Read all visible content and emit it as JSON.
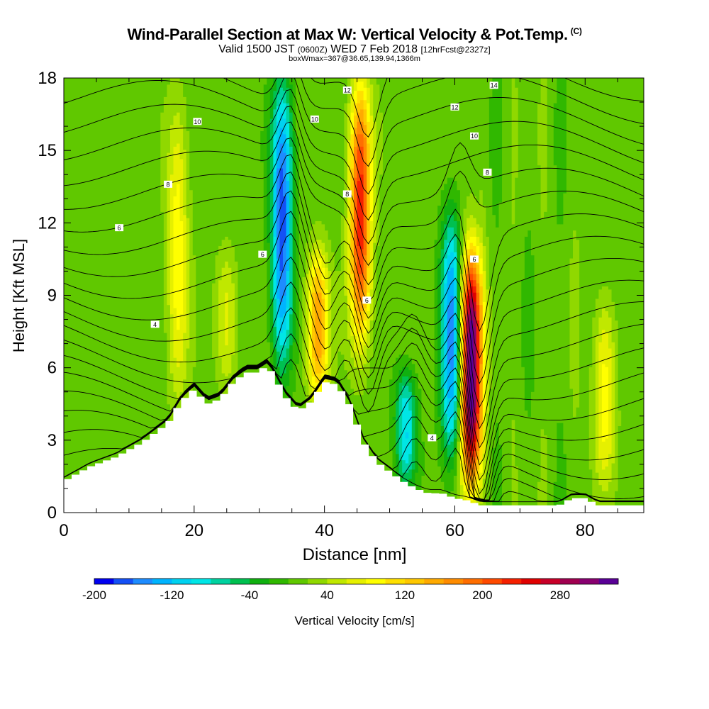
{
  "header": {
    "title": "Wind-Parallel Section at Max W: Vertical Velocity & Pot.Temp.",
    "copyright": "(C)",
    "valid_prefix": "Valid 1500 JST",
    "valid_utc": "(0600Z)",
    "valid_date": "WED 7 Feb 2018",
    "forecast": "[12hrFcst@2327z]",
    "box_info": "boxWmax=367@36.65,139.94,1366m"
  },
  "chart_data": {
    "type": "heatmap",
    "xlabel": "Distance [nm]",
    "ylabel": "Height [Kft MSL]",
    "xlim": [
      0,
      89
    ],
    "ylim": [
      0,
      18
    ],
    "x_ticks": [
      0,
      20,
      40,
      60,
      80
    ],
    "y_ticks": [
      0,
      3,
      6,
      9,
      12,
      15,
      18
    ],
    "colorbar": {
      "label": "Vertical Velocity [cm/s]",
      "min": -200,
      "max": 340,
      "step": 20,
      "tick_labels": [
        -200,
        -120,
        -40,
        40,
        120,
        200,
        280
      ],
      "colors": [
        "#0000f0",
        "#1450f5",
        "#1e8cff",
        "#00b4ff",
        "#00d2f0",
        "#00e6e6",
        "#00d2a0",
        "#00c050",
        "#10b010",
        "#30b800",
        "#60c800",
        "#90d800",
        "#c0e800",
        "#e6f000",
        "#ffff00",
        "#ffe000",
        "#ffc800",
        "#ffaa00",
        "#ff8c00",
        "#ff6e00",
        "#ff4a00",
        "#f52000",
        "#e00000",
        "#c80028",
        "#a00050",
        "#880070",
        "#5a0096"
      ]
    },
    "velocity_cores": [
      {
        "x": 17.5,
        "z_min": 4.5,
        "z_max": 17,
        "peak": 80
      },
      {
        "x": 25,
        "z_min": 5,
        "z_max": 11,
        "peak": 60
      },
      {
        "x": 33.5,
        "z_min": 5.8,
        "z_max": 18,
        "peak": -180
      },
      {
        "x": 39,
        "z_min": 4.5,
        "z_max": 11,
        "peak": 150
      },
      {
        "x": 45.5,
        "z_min": 7,
        "z_max": 18,
        "peak": 220
      },
      {
        "x": 52.5,
        "z_min": 1,
        "z_max": 6,
        "peak": -110
      },
      {
        "x": 59.5,
        "z_min": 2,
        "z_max": 12.5,
        "peak": -160
      },
      {
        "x": 62.5,
        "z_min": 1,
        "z_max": 11,
        "peak": 340
      },
      {
        "x": 83,
        "z_min": 1,
        "z_max": 9,
        "peak": 80
      }
    ],
    "terrain_kft": {
      "x": [
        0,
        2,
        4,
        8,
        12,
        16,
        18,
        20,
        22,
        24,
        26,
        28,
        30,
        31,
        32,
        34,
        36,
        38,
        40,
        42,
        44,
        46,
        48,
        50,
        52,
        54,
        56,
        58,
        60,
        62,
        64,
        66,
        70,
        74,
        76,
        78,
        80,
        82,
        84,
        89
      ],
      "z": [
        1.3,
        1.6,
        1.9,
        2.3,
        2.9,
        3.7,
        4.6,
        5.1,
        4.5,
        4.7,
        5.4,
        5.8,
        5.8,
        6.1,
        5.8,
        4.8,
        4.2,
        4.6,
        5.4,
        5.3,
        4.4,
        2.9,
        2.1,
        1.7,
        1.3,
        1.0,
        0.8,
        0.8,
        0.6,
        0.5,
        0.3,
        0.3,
        0.3,
        0.3,
        0.3,
        0.6,
        0.6,
        0.3,
        0.3,
        0.3
      ]
    },
    "theta_contours": {
      "label_values": [
        4,
        6,
        8,
        10,
        12,
        14
      ],
      "labels": [
        {
          "x": 14,
          "z": 7.8,
          "value": "4"
        },
        {
          "x": 56.5,
          "z": 3.1,
          "value": "4"
        },
        {
          "x": 8.5,
          "z": 11.8,
          "value": "6"
        },
        {
          "x": 30.5,
          "z": 10.7,
          "value": "6"
        },
        {
          "x": 46.5,
          "z": 8.8,
          "value": "6"
        },
        {
          "x": 63,
          "z": 10.5,
          "value": "6"
        },
        {
          "x": 16,
          "z": 13.6,
          "value": "8"
        },
        {
          "x": 43.5,
          "z": 13.2,
          "value": "8"
        },
        {
          "x": 65,
          "z": 14.1,
          "value": "8"
        },
        {
          "x": 20.5,
          "z": 16.2,
          "value": "10"
        },
        {
          "x": 38.5,
          "z": 16.3,
          "value": "10"
        },
        {
          "x": 63,
          "z": 15.6,
          "value": "10"
        },
        {
          "x": 43.5,
          "z": 17.5,
          "value": "12"
        },
        {
          "x": 60,
          "z": 16.8,
          "value": "12"
        },
        {
          "x": 66,
          "z": 17.7,
          "value": "14"
        }
      ]
    }
  }
}
